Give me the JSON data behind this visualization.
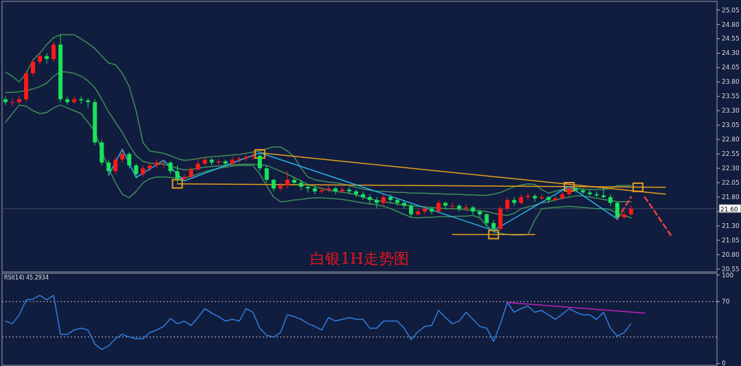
{
  "chart_data": [
    {
      "type": "candlestick",
      "title": "白银1H走势图",
      "categories": [
        null,
        null,
        null,
        null,
        null,
        null,
        null,
        null,
        null,
        null,
        null,
        null,
        null,
        null,
        null,
        null,
        null,
        null,
        null,
        null,
        null,
        null,
        null,
        null,
        null,
        null,
        null,
        null,
        null,
        null,
        null,
        null,
        null,
        null,
        null,
        null,
        null,
        null,
        null,
        null,
        null,
        null,
        null,
        null,
        null,
        null,
        null,
        null,
        null,
        null,
        null,
        null,
        null,
        null,
        null,
        null,
        null,
        null,
        null,
        null,
        null,
        null,
        null,
        null,
        null,
        null,
        null,
        null,
        null,
        null,
        null,
        null,
        null,
        null,
        null,
        null,
        null,
        null,
        null,
        null,
        null,
        null,
        null,
        null,
        null,
        null,
        null,
        null,
        null,
        null,
        null,
        null,
        null,
        null,
        null,
        null,
        null,
        null,
        null,
        null,
        null,
        null,
        null,
        null
      ],
      "ohlc": [
        [
          23.5,
          23.55,
          23.4,
          23.45
        ],
        [
          23.45,
          23.52,
          23.38,
          23.45
        ],
        [
          23.45,
          23.56,
          23.42,
          23.5
        ],
        [
          23.5,
          24.0,
          23.45,
          23.95
        ],
        [
          23.95,
          24.2,
          23.9,
          24.15
        ],
        [
          24.15,
          24.3,
          24.1,
          24.25
        ],
        [
          24.25,
          24.3,
          24.12,
          24.2
        ],
        [
          24.2,
          24.5,
          24.15,
          24.45
        ],
        [
          24.45,
          24.62,
          23.45,
          23.5
        ],
        [
          23.5,
          23.55,
          23.4,
          23.45
        ],
        [
          23.45,
          23.55,
          23.42,
          23.5
        ],
        [
          23.5,
          23.55,
          23.42,
          23.48
        ],
        [
          23.48,
          23.52,
          23.35,
          23.45
        ],
        [
          23.45,
          23.5,
          22.7,
          22.75
        ],
        [
          22.75,
          22.8,
          22.35,
          22.4
        ],
        [
          22.4,
          22.45,
          22.18,
          22.25
        ],
        [
          22.25,
          22.5,
          22.2,
          22.45
        ],
        [
          22.45,
          22.62,
          22.4,
          22.55
        ],
        [
          22.55,
          22.58,
          22.3,
          22.35
        ],
        [
          22.35,
          22.38,
          22.12,
          22.2
        ],
        [
          22.2,
          22.35,
          22.15,
          22.3
        ],
        [
          22.3,
          22.4,
          22.25,
          22.35
        ],
        [
          22.35,
          22.45,
          22.3,
          22.4
        ],
        [
          22.4,
          22.45,
          22.3,
          22.4
        ],
        [
          22.4,
          22.42,
          22.2,
          22.25
        ],
        [
          22.25,
          22.35,
          22.05,
          22.12
        ],
        [
          22.12,
          22.2,
          22.08,
          22.15
        ],
        [
          22.15,
          22.32,
          22.12,
          22.28
        ],
        [
          22.28,
          22.48,
          22.25,
          22.38
        ],
        [
          22.38,
          22.5,
          22.35,
          22.45
        ],
        [
          22.45,
          22.48,
          22.35,
          22.4
        ],
        [
          22.4,
          22.47,
          22.35,
          22.42
        ],
        [
          22.42,
          22.45,
          22.32,
          22.38
        ],
        [
          22.38,
          22.5,
          22.35,
          22.45
        ],
        [
          22.45,
          22.5,
          22.4,
          22.47
        ],
        [
          22.47,
          22.55,
          22.42,
          22.5
        ],
        [
          22.5,
          22.6,
          22.45,
          22.52
        ],
        [
          22.52,
          22.55,
          22.25,
          22.3
        ],
        [
          22.3,
          22.35,
          22.05,
          22.1
        ],
        [
          22.1,
          22.12,
          21.9,
          21.95
        ],
        [
          21.95,
          22.05,
          21.9,
          22.0
        ],
        [
          22.0,
          22.25,
          21.95,
          22.1
        ],
        [
          22.1,
          22.15,
          22.0,
          22.05
        ],
        [
          22.05,
          22.1,
          21.92,
          21.98
        ],
        [
          21.98,
          22.02,
          21.88,
          21.95
        ],
        [
          21.95,
          22.0,
          21.85,
          21.9
        ],
        [
          21.9,
          21.98,
          21.85,
          21.92
        ],
        [
          21.92,
          22.0,
          21.88,
          21.95
        ],
        [
          21.95,
          21.98,
          21.85,
          21.9
        ],
        [
          21.9,
          21.98,
          21.87,
          21.93
        ],
        [
          21.93,
          21.97,
          21.85,
          21.9
        ],
        [
          21.9,
          21.93,
          21.8,
          21.85
        ],
        [
          21.85,
          21.9,
          21.75,
          21.8
        ],
        [
          21.8,
          21.85,
          21.68,
          21.75
        ],
        [
          21.75,
          21.8,
          21.6,
          21.7
        ],
        [
          21.7,
          21.85,
          21.65,
          21.8
        ],
        [
          21.8,
          21.85,
          21.7,
          21.75
        ],
        [
          21.75,
          21.78,
          21.65,
          21.7
        ],
        [
          21.7,
          21.75,
          21.6,
          21.65
        ],
        [
          21.65,
          21.68,
          21.45,
          21.5
        ],
        [
          21.5,
          21.6,
          21.47,
          21.55
        ],
        [
          21.55,
          21.65,
          21.5,
          21.6
        ],
        [
          21.6,
          21.63,
          21.5,
          21.55
        ],
        [
          21.55,
          21.75,
          21.52,
          21.7
        ],
        [
          21.7,
          21.72,
          21.6,
          21.65
        ],
        [
          21.65,
          21.7,
          21.58,
          21.65
        ],
        [
          21.65,
          21.68,
          21.55,
          21.6
        ],
        [
          21.6,
          21.68,
          21.55,
          21.62
        ],
        [
          21.62,
          21.65,
          21.5,
          21.55
        ],
        [
          21.55,
          21.58,
          21.45,
          21.5
        ],
        [
          21.5,
          21.52,
          21.3,
          21.35
        ],
        [
          21.35,
          21.4,
          21.18,
          21.25
        ],
        [
          21.25,
          21.65,
          21.22,
          21.6
        ],
        [
          21.6,
          21.8,
          21.55,
          21.75
        ],
        [
          21.75,
          21.8,
          21.65,
          21.7
        ],
        [
          21.7,
          21.85,
          21.68,
          21.8
        ],
        [
          21.8,
          21.87,
          21.75,
          21.82
        ],
        [
          21.82,
          21.85,
          21.72,
          21.78
        ],
        [
          21.78,
          21.85,
          21.75,
          21.8
        ],
        [
          21.8,
          21.82,
          21.7,
          21.75
        ],
        [
          21.75,
          21.82,
          21.72,
          21.78
        ],
        [
          21.78,
          21.9,
          21.75,
          21.85
        ],
        [
          21.85,
          22.0,
          21.82,
          21.95
        ],
        [
          21.95,
          21.98,
          21.88,
          21.92
        ],
        [
          21.92,
          21.95,
          21.85,
          21.88
        ],
        [
          21.88,
          21.92,
          21.82,
          21.85
        ],
        [
          21.85,
          21.9,
          21.8,
          21.83
        ],
        [
          21.83,
          21.95,
          21.78,
          21.8
        ],
        [
          21.8,
          21.85,
          21.65,
          21.7
        ],
        [
          21.7,
          21.72,
          21.4,
          21.45
        ],
        [
          21.45,
          21.55,
          21.42,
          21.5
        ],
        [
          21.5,
          21.65,
          21.48,
          21.6
        ],
        null,
        null,
        null,
        null,
        null,
        null,
        null,
        null,
        null,
        null,
        null,
        null
      ],
      "colors": [
        "#19e35a",
        "#ff1a1a",
        "#ff1a1a",
        "#ff1a1a",
        "#ff1a1a",
        "#ff1a1a",
        "#19e35a",
        "#ff1a1a",
        "#19e35a",
        "#19e35a",
        "#ff1a1a",
        "#19e35a",
        "#19e35a",
        "#19e35a",
        "#19e35a",
        "#19e35a",
        "#ff1a1a",
        "#ff1a1a",
        "#19e35a",
        "#19e35a",
        "#ff1a1a",
        "#ff1a1a",
        "#ff1a1a",
        "#ff1a1a",
        "#19e35a",
        "#19e35a",
        "#ff1a1a",
        "#ff1a1a",
        "#ff1a1a",
        "#ff1a1a",
        "#19e35a",
        "#ff1a1a",
        "#19e35a",
        "#ff1a1a",
        "#ff1a1a",
        "#ff1a1a",
        "#ff1a1a",
        "#19e35a",
        "#19e35a",
        "#19e35a",
        "#ff1a1a",
        "#ff1a1a",
        "#19e35a",
        "#19e35a",
        "#19e35a",
        "#19e35a",
        "#ff1a1a",
        "#ff1a1a",
        "#19e35a",
        "#ff1a1a",
        "#19e35a",
        "#19e35a",
        "#19e35a",
        "#19e35a",
        "#19e35a",
        "#ff1a1a",
        "#19e35a",
        "#19e35a",
        "#19e35a",
        "#19e35a",
        "#ff1a1a",
        "#ff1a1a",
        "#19e35a",
        "#ff1a1a",
        "#19e35a",
        "#ff1a1a",
        "#19e35a",
        "#ff1a1a",
        "#19e35a",
        "#19e35a",
        "#19e35a",
        "#19e35a",
        "#ff1a1a",
        "#ff1a1a",
        "#19e35a",
        "#ff1a1a",
        "#ff1a1a",
        "#19e35a",
        "#ff1a1a",
        "#19e35a",
        "#ff1a1a",
        "#ff1a1a",
        "#ff1a1a",
        "#19e35a",
        "#19e35a",
        "#19e35a",
        "#19e35a",
        "#19e35a",
        "#19e35a",
        "#19e35a",
        "#ff1a1a",
        "#ff1a1a",
        null,
        null,
        null,
        null,
        null,
        null,
        null,
        null,
        null,
        null,
        null,
        null
      ],
      "series": [
        {
          "type": "line",
          "color": "#3f8f5a",
          "values": [
            23.97,
            23.9,
            23.8,
            23.95,
            24.18,
            24.3,
            24.45,
            24.57,
            24.62,
            24.62,
            24.62,
            24.55,
            24.47,
            24.38,
            24.25,
            24.13,
            24.1,
            23.95,
            23.72,
            23.3,
            22.75,
            22.6,
            22.58,
            22.56,
            22.52,
            22.47,
            22.44,
            22.45,
            22.47,
            22.49,
            22.5,
            22.51,
            22.52,
            22.53,
            22.54,
            22.56,
            22.58,
            22.6,
            22.64,
            22.67,
            22.67,
            22.6,
            22.5,
            22.3,
            22.15,
            22.1,
            22.08,
            22.06,
            22.05,
            22.03,
            22.0,
            21.97,
            21.94,
            21.92,
            21.9,
            21.9,
            21.89,
            21.88,
            21.88,
            21.87,
            21.87,
            21.87,
            21.86,
            21.86,
            21.85,
            21.85,
            21.85,
            21.84,
            21.84,
            21.83,
            21.83,
            21.85,
            21.88,
            21.93,
            21.98,
            22.01,
            22.03,
            22.02,
            21.93,
            21.87,
            21.9,
            21.93,
            21.95,
            21.95,
            21.94,
            21.93,
            21.93,
            21.93,
            21.95,
            22.0,
            22.0,
            22.0,
            null,
            null,
            null,
            null,
            null,
            null,
            null,
            null,
            null,
            null,
            null,
            null
          ]
        },
        {
          "type": "line",
          "color": "#3f8f5a",
          "values": [
            23.62,
            23.62,
            23.63,
            23.65,
            23.68,
            23.72,
            23.78,
            23.9,
            23.98,
            23.97,
            23.95,
            23.9,
            23.82,
            23.7,
            23.5,
            23.28,
            23.1,
            22.92,
            22.7,
            22.52,
            22.42,
            22.39,
            22.38,
            22.37,
            22.34,
            22.3,
            22.27,
            22.28,
            22.3,
            22.32,
            22.33,
            22.34,
            22.35,
            22.36,
            22.37,
            22.37,
            22.37,
            22.36,
            22.35,
            22.3,
            22.25,
            22.2,
            22.14,
            22.08,
            22.02,
            21.98,
            21.95,
            21.92,
            21.9,
            21.88,
            21.87,
            21.84,
            21.8,
            21.77,
            21.74,
            21.72,
            21.7,
            21.68,
            21.66,
            21.65,
            21.64,
            21.63,
            21.62,
            21.61,
            21.6,
            21.6,
            21.59,
            21.58,
            21.57,
            21.56,
            21.55,
            21.52,
            21.5,
            21.48,
            21.52,
            21.6,
            21.63,
            21.66,
            21.7,
            21.72,
            21.75,
            21.78,
            21.8,
            21.82,
            21.82,
            21.8,
            21.78,
            21.76,
            21.74,
            21.72,
            21.72,
            21.72,
            null,
            null,
            null,
            null,
            null,
            null,
            null,
            null,
            null,
            null,
            null,
            null
          ]
        },
        {
          "type": "line",
          "color": "#3f8f5a",
          "values": [
            23.1,
            23.25,
            23.4,
            23.38,
            23.3,
            23.25,
            23.27,
            23.35,
            23.4,
            23.35,
            23.3,
            23.25,
            23.1,
            22.94,
            22.6,
            22.3,
            22.05,
            21.85,
            21.79,
            21.9,
            22.05,
            22.12,
            22.15,
            22.15,
            22.14,
            22.13,
            22.13,
            22.16,
            22.2,
            22.24,
            22.27,
            22.3,
            22.32,
            22.34,
            22.35,
            22.35,
            22.35,
            22.2,
            22.0,
            21.8,
            21.72,
            21.73,
            21.75,
            21.76,
            21.78,
            21.79,
            21.79,
            21.78,
            21.77,
            21.76,
            21.74,
            21.72,
            21.7,
            21.68,
            21.67,
            21.64,
            21.6,
            21.55,
            21.5,
            21.45,
            21.44,
            21.45,
            21.45,
            21.46,
            21.46,
            21.46,
            21.47,
            21.47,
            21.48,
            21.44,
            21.3,
            21.2,
            21.17,
            21.15,
            21.14,
            21.14,
            21.15,
            21.4,
            21.6,
            21.61,
            21.62,
            21.63,
            21.64,
            21.63,
            21.62,
            21.61,
            21.6,
            21.6,
            21.58,
            21.52,
            21.48,
            21.44,
            null,
            null,
            null,
            null,
            null,
            null,
            null,
            null,
            null,
            null,
            null,
            null
          ]
        },
        {
          "type": "line",
          "color": "#e8a020",
          "values": [
            null,
            null,
            null,
            null,
            null,
            null,
            null,
            null,
            null,
            null,
            null,
            null,
            null,
            null,
            null,
            null,
            null,
            null,
            null,
            null,
            null,
            null,
            null,
            null,
            null,
            null,
            null,
            null,
            null,
            null,
            null,
            null,
            null,
            null,
            null,
            null,
            null,
            22.57,
            null,
            null,
            null,
            null,
            null,
            null,
            null,
            null,
            null,
            null,
            null,
            null,
            null,
            null,
            null,
            null,
            null,
            null,
            null,
            null,
            null,
            null,
            null,
            null,
            null,
            null,
            null,
            null,
            null,
            null,
            null,
            null,
            null,
            null,
            null,
            null,
            null,
            null,
            null,
            null,
            null,
            null,
            null,
            null,
            null,
            null,
            null,
            null,
            null,
            null,
            null,
            null,
            null,
            null,
            null,
            null,
            null,
            null,
            21.85,
            null,
            null,
            null,
            null,
            null,
            null,
            null
          ]
        },
        {
          "type": "line",
          "color": "#e8a020",
          "values": [
            null,
            null,
            null,
            null,
            null,
            null,
            null,
            null,
            null,
            null,
            null,
            null,
            null,
            null,
            null,
            null,
            null,
            null,
            null,
            null,
            null,
            null,
            null,
            null,
            null,
            22.03,
            null,
            null,
            null,
            null,
            null,
            null,
            null,
            null,
            null,
            null,
            null,
            null,
            null,
            null,
            null,
            null,
            null,
            null,
            null,
            null,
            null,
            null,
            null,
            null,
            null,
            null,
            null,
            null,
            null,
            null,
            null,
            null,
            null,
            null,
            null,
            null,
            null,
            null,
            null,
            null,
            null,
            null,
            null,
            null,
            null,
            null,
            null,
            null,
            null,
            null,
            null,
            null,
            null,
            null,
            null,
            null,
            null,
            null,
            null,
            null,
            null,
            null,
            null,
            null,
            null,
            null,
            null,
            null,
            null,
            null,
            21.97,
            null,
            null,
            null,
            null,
            null,
            null,
            null
          ]
        },
        {
          "type": "line",
          "color": "#e8a020",
          "values": [
            null,
            null,
            null,
            null,
            null,
            null,
            null,
            null,
            null,
            null,
            null,
            null,
            null,
            null,
            null,
            null,
            null,
            null,
            null,
            null,
            null,
            null,
            null,
            null,
            null,
            null,
            null,
            null,
            null,
            null,
            null,
            null,
            null,
            null,
            null,
            null,
            null,
            null,
            null,
            null,
            null,
            null,
            null,
            null,
            null,
            null,
            null,
            null,
            null,
            null,
            null,
            null,
            null,
            null,
            null,
            null,
            null,
            null,
            null,
            null,
            null,
            null,
            null,
            null,
            null,
            21.15,
            null,
            null,
            null,
            null,
            null,
            null,
            null,
            null,
            null,
            null,
            null,
            21.15,
            null,
            null,
            null,
            null,
            null,
            null,
            null,
            null,
            null,
            null,
            null,
            null,
            null,
            null,
            null,
            null,
            null,
            null,
            null,
            null,
            null,
            null,
            null,
            null,
            null,
            null
          ]
        },
        {
          "type": "line",
          "color": "#29b6f0",
          "values": [
            null,
            null,
            null,
            null,
            null,
            null,
            null,
            null,
            null,
            null,
            null,
            null,
            null,
            null,
            null,
            22.18,
            null,
            22.63,
            null,
            22.14,
            null,
            null,
            null,
            22.44,
            null,
            null,
            22.08,
            null,
            null,
            null,
            null,
            null,
            null,
            null,
            null,
            null,
            null,
            22.57,
            null,
            null,
            null,
            null,
            null,
            null,
            null,
            null,
            null,
            null,
            null,
            null,
            null,
            null,
            null,
            null,
            null,
            null,
            null,
            null,
            null,
            null,
            null,
            null,
            null,
            null,
            null,
            null,
            null,
            null,
            null,
            null,
            null,
            21.22,
            null,
            null,
            null,
            null,
            null,
            null,
            null,
            null,
            null,
            null,
            21.99,
            null,
            null,
            null,
            null,
            null,
            null,
            21.42,
            null,
            null,
            null,
            null,
            null,
            null,
            null,
            null,
            null,
            null,
            null,
            null,
            null,
            null
          ]
        },
        {
          "type": "scatter",
          "marker": "square",
          "color": "#e8a020",
          "values": [
            null,
            null,
            null,
            null,
            null,
            null,
            null,
            null,
            null,
            null,
            null,
            null,
            null,
            null,
            null,
            null,
            null,
            null,
            null,
            null,
            null,
            null,
            null,
            null,
            null,
            22.03,
            null,
            null,
            null,
            null,
            null,
            null,
            null,
            null,
            null,
            null,
            null,
            22.55,
            null,
            null,
            null,
            null,
            null,
            null,
            null,
            null,
            null,
            null,
            null,
            null,
            null,
            null,
            null,
            null,
            null,
            null,
            null,
            null,
            null,
            null,
            null,
            null,
            null,
            null,
            null,
            null,
            null,
            null,
            null,
            null,
            null,
            21.15,
            null,
            null,
            null,
            null,
            null,
            null,
            null,
            null,
            null,
            null,
            21.98,
            null,
            null,
            null,
            null,
            null,
            null,
            null,
            null,
            null,
            21.97,
            null,
            null,
            null,
            null,
            null,
            null,
            null,
            null,
            null,
            null,
            null
          ]
        },
        {
          "type": "line",
          "line_style": "dashed",
          "color": "#f04040",
          "values": [
            null,
            null,
            null,
            null,
            null,
            null,
            null,
            null,
            null,
            null,
            null,
            null,
            null,
            null,
            null,
            null,
            null,
            null,
            null,
            null,
            null,
            null,
            null,
            null,
            null,
            null,
            null,
            null,
            null,
            null,
            null,
            null,
            null,
            null,
            null,
            null,
            null,
            null,
            null,
            null,
            null,
            null,
            null,
            null,
            null,
            null,
            null,
            null,
            null,
            null,
            null,
            null,
            null,
            null,
            null,
            null,
            null,
            null,
            null,
            null,
            null,
            null,
            null,
            null,
            null,
            null,
            null,
            null,
            null,
            null,
            null,
            null,
            null,
            null,
            null,
            null,
            null,
            null,
            null,
            null,
            null,
            null,
            null,
            null,
            null,
            null,
            null,
            null,
            null,
            21.42,
            null,
            21.8,
            null,
            null,
            null,
            null,
            null,
            null,
            null,
            null,
            null,
            null,
            null,
            null
          ]
        },
        {
          "type": "line",
          "line_style": "dashed",
          "color": "#f04040",
          "values": [
            null,
            null,
            null,
            null,
            null,
            null,
            null,
            null,
            null,
            null,
            null,
            null,
            null,
            null,
            null,
            null,
            null,
            null,
            null,
            null,
            null,
            null,
            null,
            null,
            null,
            null,
            null,
            null,
            null,
            null,
            null,
            null,
            null,
            null,
            null,
            null,
            null,
            null,
            null,
            null,
            null,
            null,
            null,
            null,
            null,
            null,
            null,
            null,
            null,
            null,
            null,
            null,
            null,
            null,
            null,
            null,
            null,
            null,
            null,
            null,
            null,
            null,
            null,
            null,
            null,
            null,
            null,
            null,
            null,
            null,
            null,
            null,
            null,
            null,
            null,
            null,
            null,
            null,
            null,
            null,
            null,
            null,
            null,
            null,
            null,
            null,
            null,
            null,
            null,
            null,
            null,
            null,
            null,
            21.8,
            null,
            null,
            null,
            21.1,
            null,
            null,
            null,
            null,
            null,
            null
          ]
        }
      ],
      "ylim": [
        20.5,
        25.2
      ],
      "yticks": [
        {
          "value": 20.55,
          "label": "20.55"
        },
        {
          "value": 20.8,
          "label": "20.80"
        },
        {
          "value": 21.05,
          "label": "21.05"
        },
        {
          "value": 21.3,
          "label": "21.30"
        },
        {
          "value": 21.55,
          "label": null
        },
        {
          "value": 21.8,
          "label": "21.80"
        },
        {
          "value": 22.05,
          "label": "22.05"
        },
        {
          "value": 22.3,
          "label": "22.30"
        },
        {
          "value": 22.55,
          "label": "22.55"
        },
        {
          "value": 22.8,
          "label": "22.80"
        },
        {
          "value": 23.05,
          "label": "23.05"
        },
        {
          "value": 23.3,
          "label": "23.30"
        },
        {
          "value": 23.55,
          "label": "23.55"
        },
        {
          "value": 23.8,
          "label": "23.80"
        },
        {
          "value": 24.05,
          "label": "24.05"
        },
        {
          "value": 24.3,
          "label": "24.30"
        },
        {
          "value": 24.55,
          "label": "24.55"
        },
        {
          "value": 24.8,
          "label": "24.80"
        },
        {
          "value": 25.05,
          "label": "25.05"
        }
      ],
      "ref_lines": [
        {
          "axis": "y",
          "value": 21.6,
          "label": "21.60"
        }
      ],
      "tick_labels": "y",
      "grid": false
    },
    {
      "type": "line",
      "title": "RSI(14) 45.2934",
      "categories": [
        null,
        null,
        null,
        null,
        null,
        null,
        null,
        null,
        null,
        null,
        null,
        null,
        null,
        null,
        null,
        null,
        null,
        null,
        null,
        null,
        null,
        null,
        null,
        null,
        null,
        null,
        null,
        null,
        null,
        null,
        null,
        null,
        null,
        null,
        null,
        null,
        null,
        null,
        null,
        null,
        null,
        null,
        null,
        null,
        null,
        null,
        null,
        null,
        null,
        null,
        null,
        null,
        null,
        null,
        null,
        null,
        null,
        null,
        null,
        null,
        null,
        null,
        null,
        null,
        null,
        null,
        null,
        null,
        null,
        null,
        null,
        null,
        null,
        null,
        null,
        null,
        null,
        null,
        null,
        null,
        null,
        null,
        null,
        null,
        null,
        null,
        null,
        null,
        null,
        null,
        null,
        null,
        null,
        null,
        null,
        null,
        null,
        null,
        null,
        null,
        null,
        null,
        null,
        null
      ],
      "series": [
        {
          "color": "#2f7fe0",
          "values": [
            48,
            45,
            55,
            72,
            73,
            77,
            72,
            77,
            33,
            33,
            38,
            40,
            38,
            22,
            16,
            20,
            28,
            33,
            30,
            28,
            28,
            35,
            38,
            42,
            51,
            45,
            48,
            43,
            52,
            62,
            57,
            53,
            48,
            50,
            48,
            62,
            58,
            40,
            32,
            30,
            35,
            55,
            53,
            50,
            45,
            42,
            38,
            52,
            48,
            50,
            52,
            50,
            50,
            40,
            40,
            48,
            48,
            48,
            40,
            27,
            36,
            42,
            43,
            60,
            52,
            45,
            48,
            58,
            50,
            42,
            40,
            25,
            45,
            69,
            58,
            62,
            65,
            58,
            60,
            55,
            50,
            56,
            62,
            58,
            55,
            55,
            50,
            58,
            40,
            31,
            35,
            45,
            null,
            null,
            null,
            null,
            null,
            null,
            null,
            null,
            null,
            null,
            null,
            null
          ]
        },
        {
          "color": "#c020c0",
          "values": [
            null,
            null,
            null,
            null,
            null,
            null,
            null,
            null,
            null,
            null,
            null,
            null,
            null,
            null,
            null,
            null,
            null,
            null,
            null,
            null,
            null,
            null,
            null,
            null,
            null,
            null,
            null,
            null,
            null,
            null,
            null,
            null,
            null,
            null,
            null,
            null,
            null,
            null,
            null,
            null,
            null,
            null,
            null,
            null,
            null,
            null,
            null,
            null,
            null,
            null,
            null,
            null,
            null,
            null,
            null,
            null,
            null,
            null,
            null,
            null,
            null,
            null,
            null,
            null,
            null,
            null,
            null,
            null,
            null,
            null,
            null,
            null,
            null,
            69,
            null,
            null,
            null,
            null,
            null,
            null,
            null,
            null,
            null,
            null,
            null,
            null,
            null,
            null,
            null,
            null,
            null,
            null,
            null,
            57,
            null,
            null,
            null,
            null,
            null,
            null,
            null,
            null,
            null,
            null
          ]
        }
      ],
      "ylim": [
        -2,
        102
      ],
      "yticks": [
        0,
        70,
        100
      ],
      "ref_lines": [
        {
          "axis": "y",
          "value": 70,
          "line_style": "dotted",
          "color": "#c8c8c8"
        },
        {
          "axis": "y",
          "value": 30,
          "line_style": "dotted",
          "color": "#c8c8c8"
        }
      ],
      "tick_labels": "y",
      "grid": false
    }
  ]
}
